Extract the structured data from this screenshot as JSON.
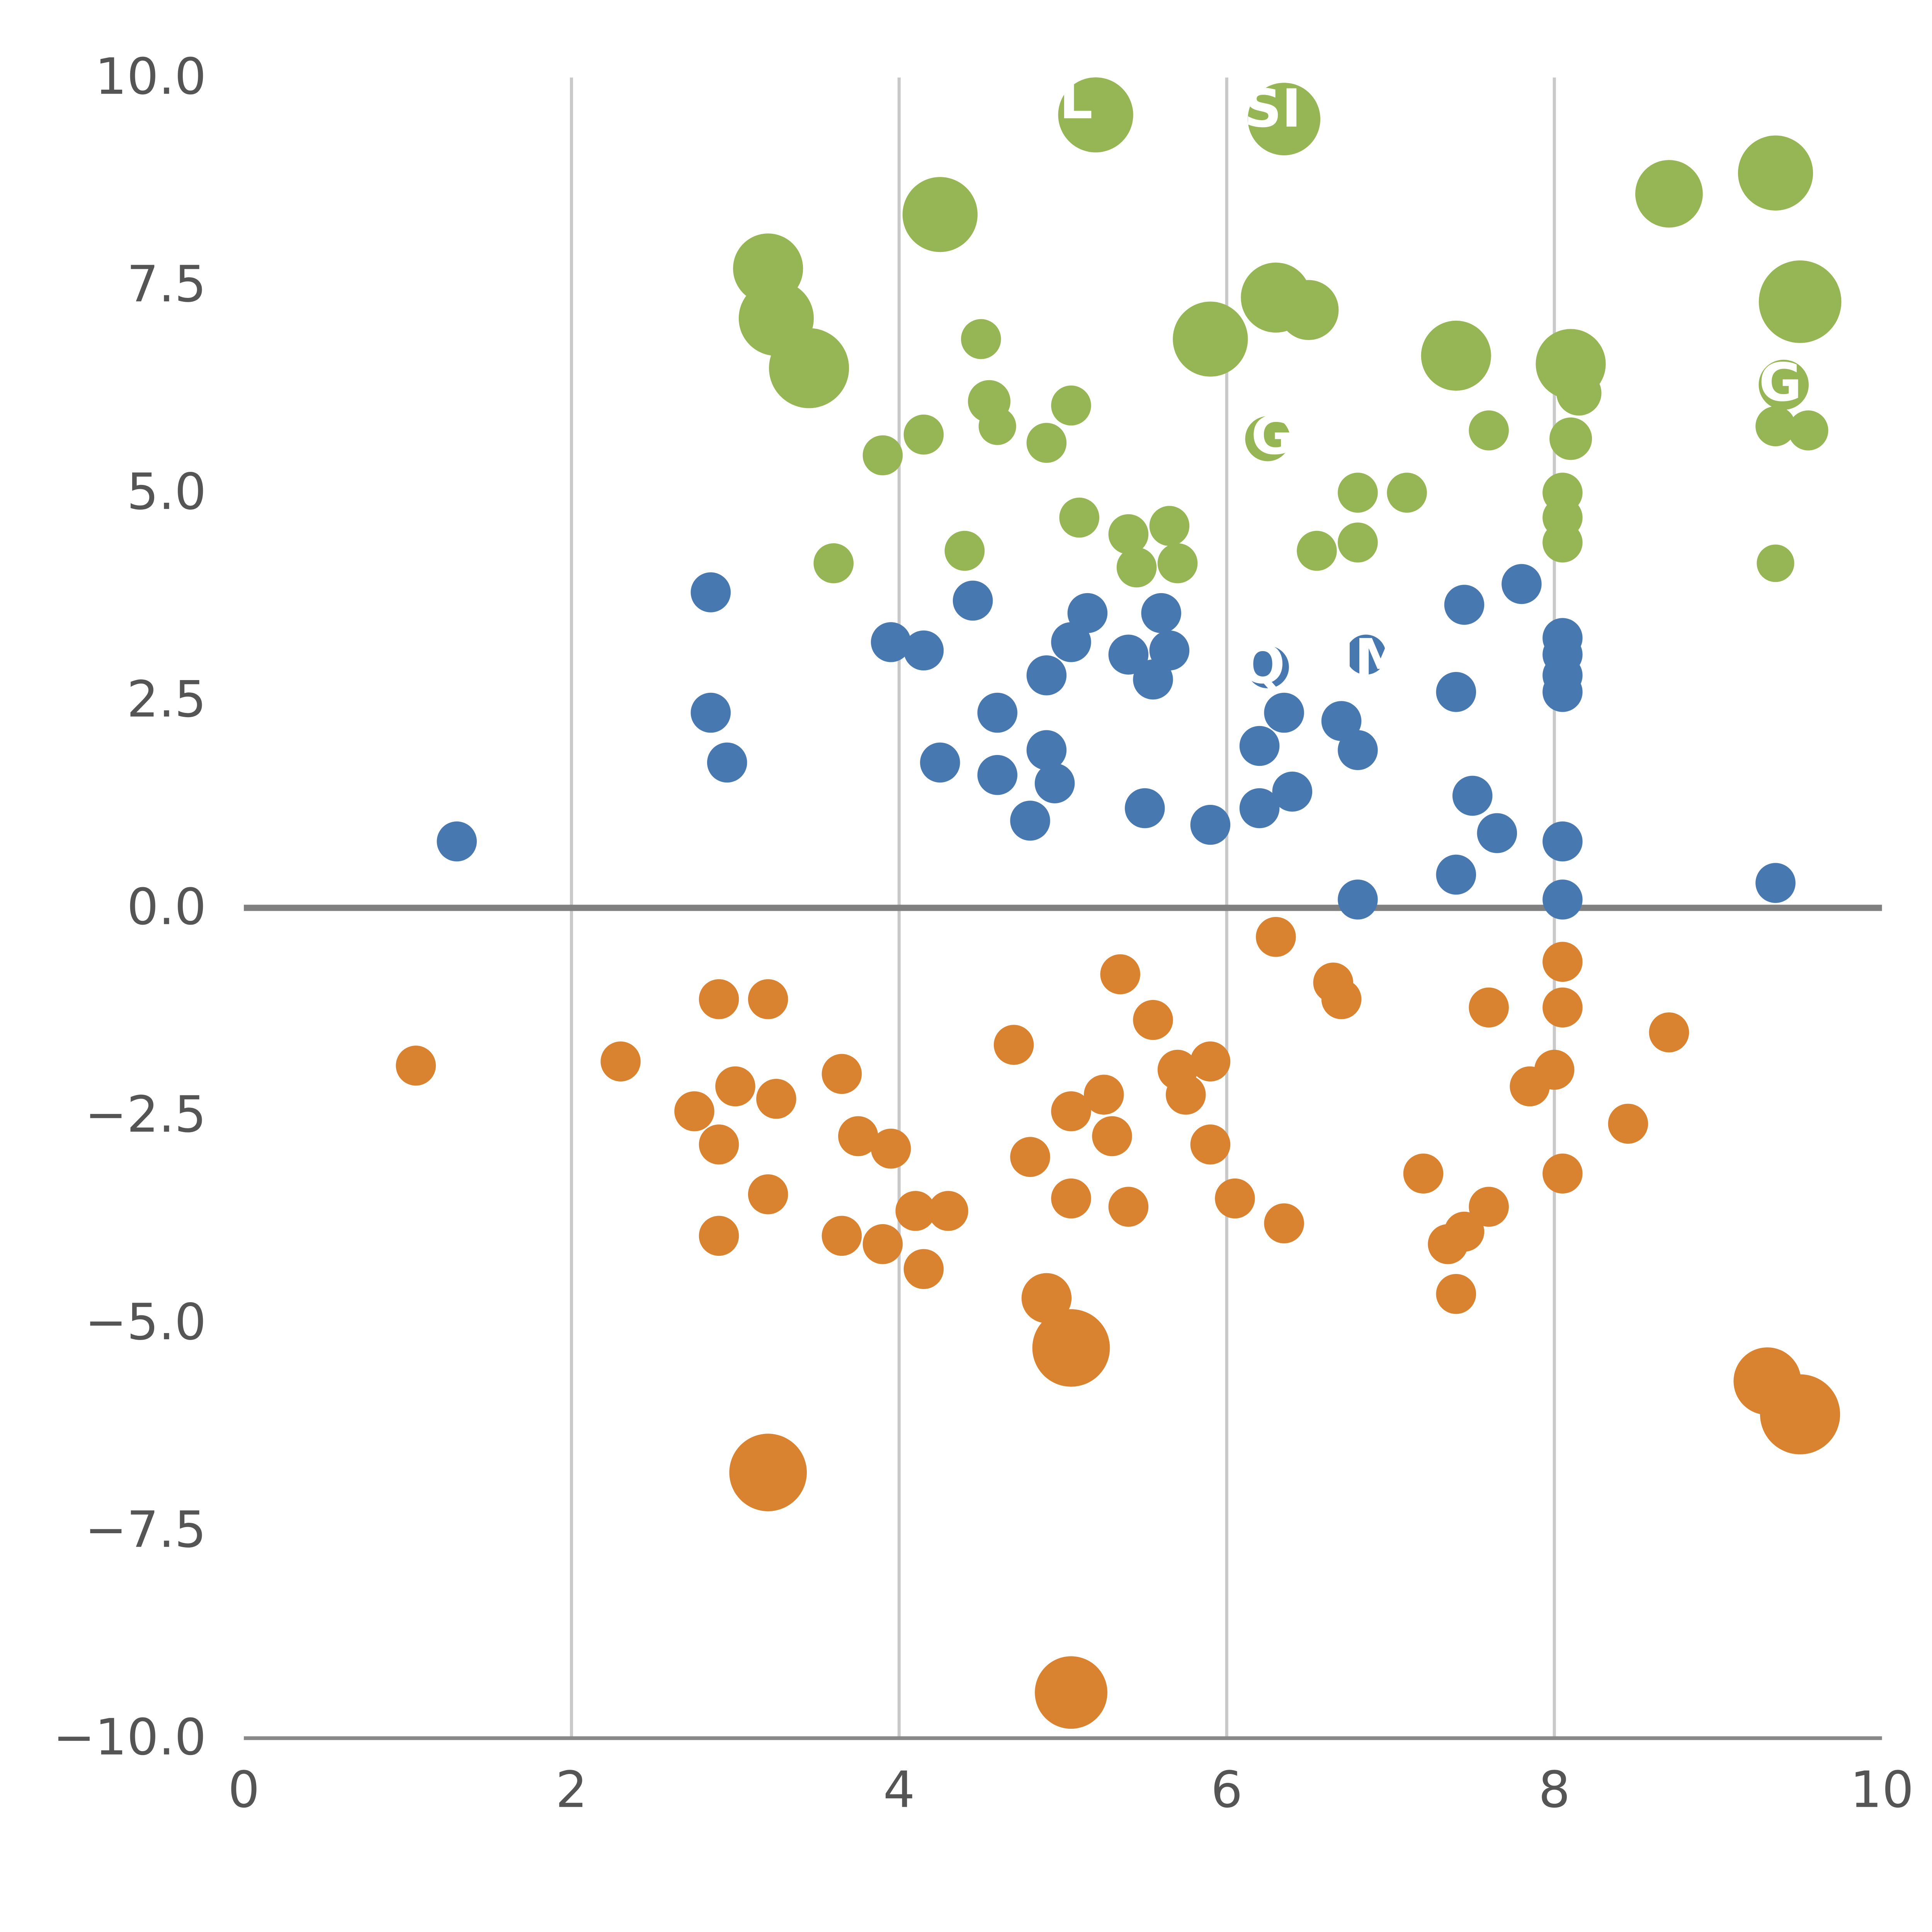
{
  "chart_data": {
    "type": "scatter",
    "title": "",
    "xlabel": "",
    "ylabel": "",
    "xlim": [
      0,
      10
    ],
    "ylim": [
      -10,
      10
    ],
    "x_ticks": [
      0,
      2,
      4,
      6,
      8,
      10
    ],
    "x_tick_labels": [
      "0",
      "2",
      "4",
      "6",
      "8",
      "10"
    ],
    "y_ticks": [
      10.0,
      7.5,
      5.0,
      2.5,
      0.0,
      -2.5,
      -5.0,
      -7.5,
      -10.0
    ],
    "y_tick_labels": [
      "10.0",
      "7.5",
      "5.0",
      "2.5",
      "0.0",
      "−2.5",
      "−5.0",
      "−7.5",
      "−10.0"
    ],
    "grid": {
      "vertical_at": [
        2,
        4,
        6,
        8
      ],
      "color": "#c9c9c9",
      "on": true
    },
    "zero_line": {
      "y": 0,
      "color": "#808080"
    },
    "axis_color": "#888888",
    "tick_label_color": "#555555",
    "legend": {
      "visible": false
    },
    "series": [
      {
        "name": "green-cluster",
        "color": "#96b554",
        "points": [
          [
            5.2,
            9.55,
            30
          ],
          [
            6.35,
            9.5,
            29
          ],
          [
            4.25,
            8.35,
            30
          ],
          [
            8.7,
            8.6,
            27
          ],
          [
            9.35,
            8.85,
            30
          ],
          [
            3.2,
            7.7,
            28
          ],
          [
            3.25,
            7.1,
            30
          ],
          [
            3.45,
            6.5,
            32
          ],
          [
            6.3,
            7.35,
            28
          ],
          [
            6.5,
            7.2,
            24
          ],
          [
            5.9,
            6.85,
            30
          ],
          [
            9.5,
            7.3,
            33
          ],
          [
            7.4,
            6.65,
            28
          ],
          [
            8.1,
            6.55,
            28
          ],
          [
            8.15,
            6.2,
            18
          ],
          [
            9.4,
            6.3,
            20
          ],
          [
            9.35,
            5.8,
            16
          ],
          [
            9.55,
            5.75,
            16
          ],
          [
            4.5,
            6.85,
            16
          ],
          [
            4.55,
            6.1,
            17
          ],
          [
            4.6,
            5.8,
            15
          ],
          [
            5.05,
            6.05,
            16
          ],
          [
            4.9,
            5.6,
            16
          ],
          [
            4.15,
            5.7,
            16
          ],
          [
            3.9,
            5.45,
            16
          ],
          [
            6.25,
            5.65,
            18
          ],
          [
            7.6,
            5.75,
            16
          ],
          [
            8.1,
            5.65,
            17
          ],
          [
            8.05,
            5.0,
            16
          ],
          [
            8.05,
            4.7,
            16
          ],
          [
            8.05,
            4.4,
            16
          ],
          [
            6.8,
            5.0,
            16
          ],
          [
            7.1,
            5.0,
            16
          ],
          [
            6.8,
            4.4,
            16
          ],
          [
            6.55,
            4.3,
            16
          ],
          [
            5.1,
            4.7,
            16
          ],
          [
            5.4,
            4.5,
            16
          ],
          [
            5.65,
            4.6,
            16
          ],
          [
            5.7,
            4.15,
            16
          ],
          [
            5.45,
            4.1,
            16
          ],
          [
            3.6,
            4.15,
            16
          ],
          [
            4.4,
            4.3,
            16
          ],
          [
            9.35,
            4.15,
            15
          ]
        ]
      },
      {
        "name": "blue-cluster",
        "color": "#4878b0",
        "points": [
          [
            2.85,
            3.8,
            16
          ],
          [
            4.45,
            3.7,
            16
          ],
          [
            5.15,
            3.55,
            16
          ],
          [
            7.45,
            3.65,
            16
          ],
          [
            7.8,
            3.9,
            16
          ],
          [
            5.6,
            3.55,
            16
          ],
          [
            5.65,
            3.1,
            16
          ],
          [
            3.95,
            3.2,
            16
          ],
          [
            4.15,
            3.1,
            16
          ],
          [
            5.05,
            3.2,
            16
          ],
          [
            4.9,
            2.8,
            16
          ],
          [
            5.4,
            3.05,
            16
          ],
          [
            5.55,
            2.75,
            16
          ],
          [
            6.25,
            2.9,
            17
          ],
          [
            6.85,
            3.05,
            16
          ],
          [
            8.05,
            3.25,
            16
          ],
          [
            8.05,
            3.05,
            16
          ],
          [
            8.05,
            2.8,
            16
          ],
          [
            8.05,
            2.6,
            16
          ],
          [
            7.4,
            2.6,
            16
          ],
          [
            2.85,
            2.35,
            16
          ],
          [
            4.6,
            2.35,
            16
          ],
          [
            6.35,
            2.35,
            16
          ],
          [
            6.7,
            2.25,
            16
          ],
          [
            2.95,
            1.75,
            16
          ],
          [
            4.25,
            1.75,
            16
          ],
          [
            4.6,
            1.6,
            16
          ],
          [
            4.9,
            1.9,
            16
          ],
          [
            4.95,
            1.5,
            16
          ],
          [
            6.2,
            1.95,
            16
          ],
          [
            6.8,
            1.9,
            16
          ],
          [
            4.8,
            1.05,
            16
          ],
          [
            5.5,
            1.2,
            16
          ],
          [
            6.2,
            1.2,
            16
          ],
          [
            6.4,
            1.4,
            16
          ],
          [
            5.9,
            1.0,
            16
          ],
          [
            7.5,
            1.35,
            16
          ],
          [
            7.65,
            0.9,
            16
          ],
          [
            1.3,
            0.8,
            16
          ],
          [
            8.05,
            0.8,
            16
          ],
          [
            7.4,
            0.4,
            16
          ],
          [
            9.35,
            0.3,
            16
          ],
          [
            6.8,
            0.1,
            16
          ],
          [
            8.05,
            0.1,
            16
          ]
        ]
      },
      {
        "name": "orange-cluster",
        "color": "#d9822f",
        "points": [
          [
            6.3,
            -0.35,
            16
          ],
          [
            5.35,
            -0.8,
            16
          ],
          [
            6.65,
            -0.9,
            16
          ],
          [
            8.05,
            -0.65,
            16
          ],
          [
            2.9,
            -1.1,
            16
          ],
          [
            3.2,
            -1.1,
            16
          ],
          [
            6.7,
            -1.1,
            16
          ],
          [
            5.55,
            -1.35,
            16
          ],
          [
            7.6,
            -1.2,
            16
          ],
          [
            8.05,
            -1.2,
            16
          ],
          [
            8.7,
            -1.5,
            16
          ],
          [
            4.7,
            -1.65,
            16
          ],
          [
            1.05,
            -1.9,
            16
          ],
          [
            2.3,
            -1.85,
            16
          ],
          [
            5.7,
            -1.95,
            16
          ],
          [
            5.9,
            -1.85,
            16
          ],
          [
            8.0,
            -1.95,
            16
          ],
          [
            7.85,
            -2.15,
            16
          ],
          [
            3.0,
            -2.15,
            16
          ],
          [
            3.25,
            -2.3,
            16
          ],
          [
            2.75,
            -2.45,
            16
          ],
          [
            3.65,
            -2.0,
            16
          ],
          [
            5.25,
            -2.25,
            16
          ],
          [
            5.05,
            -2.45,
            16
          ],
          [
            5.75,
            -2.25,
            16
          ],
          [
            8.45,
            -2.6,
            16
          ],
          [
            2.9,
            -2.85,
            16
          ],
          [
            3.75,
            -2.75,
            16
          ],
          [
            3.95,
            -2.9,
            16
          ],
          [
            4.8,
            -3.0,
            16
          ],
          [
            5.3,
            -2.75,
            16
          ],
          [
            5.9,
            -2.85,
            16
          ],
          [
            7.2,
            -3.2,
            16
          ],
          [
            8.05,
            -3.2,
            16
          ],
          [
            3.2,
            -3.45,
            16
          ],
          [
            5.05,
            -3.5,
            16
          ],
          [
            5.4,
            -3.6,
            16
          ],
          [
            6.05,
            -3.5,
            16
          ],
          [
            4.1,
            -3.65,
            16
          ],
          [
            4.3,
            -3.65,
            16
          ],
          [
            6.35,
            -3.8,
            16
          ],
          [
            7.6,
            -3.6,
            16
          ],
          [
            2.9,
            -3.95,
            16
          ],
          [
            3.65,
            -3.95,
            16
          ],
          [
            3.9,
            -4.05,
            16
          ],
          [
            7.35,
            -4.05,
            16
          ],
          [
            7.45,
            -3.9,
            16
          ],
          [
            4.15,
            -4.35,
            16
          ],
          [
            7.4,
            -4.65,
            16
          ],
          [
            4.9,
            -4.7,
            20
          ],
          [
            5.05,
            -5.3,
            31
          ],
          [
            9.3,
            -5.7,
            27
          ],
          [
            9.5,
            -6.1,
            32
          ],
          [
            3.2,
            -6.8,
            31
          ],
          [
            5.05,
            -9.45,
            29
          ]
        ]
      }
    ],
    "annotations": [
      {
        "text": "L",
        "x": 5.08,
        "y": 9.72,
        "color": "#ffffff"
      },
      {
        "text": "SI",
        "x": 6.28,
        "y": 9.62,
        "color": "#ffffff"
      },
      {
        "text": "G",
        "x": 6.28,
        "y": 5.68,
        "color": "#ffffff"
      },
      {
        "text": "G",
        "x": 9.38,
        "y": 6.32,
        "color": "#ffffff"
      },
      {
        "text": "Q",
        "x": 6.22,
        "y": 2.92,
        "color": "#ffffff"
      },
      {
        "text": "IM",
        "x": 6.88,
        "y": 3.0,
        "color": "#ffffff"
      }
    ]
  }
}
